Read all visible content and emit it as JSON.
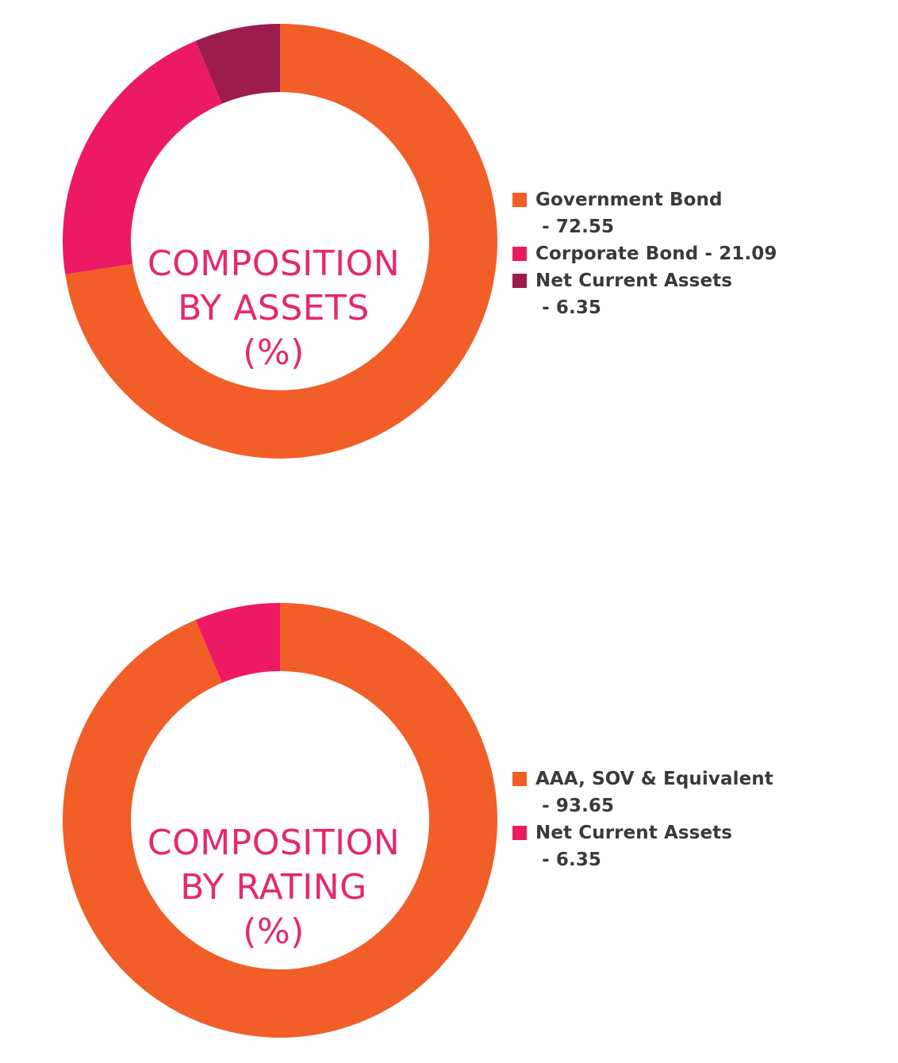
{
  "chart_data": [
    {
      "type": "pie",
      "title_lines": [
        "COMPOSITION",
        "BY ASSETS",
        "(%)"
      ],
      "slices": [
        {
          "label": "Government Bond",
          "value": 72.55,
          "color": "#f15e28"
        },
        {
          "label": "Corporate Bond",
          "value": 21.09,
          "color": "#ec1a65"
        },
        {
          "label": "Net Current Assets",
          "value": 6.35,
          "color": "#9c1c4f"
        }
      ],
      "legend_position": "right"
    },
    {
      "type": "pie",
      "title_lines": [
        "COMPOSITION",
        "BY RATING",
        "(%)"
      ],
      "slices": [
        {
          "label": "AAA, SOV & Equivalent",
          "value": 93.65,
          "color": "#f15e28"
        },
        {
          "label": "Net Current Assets",
          "value": 6.35,
          "color": "#ec1a65"
        }
      ],
      "legend_position": "right"
    }
  ]
}
